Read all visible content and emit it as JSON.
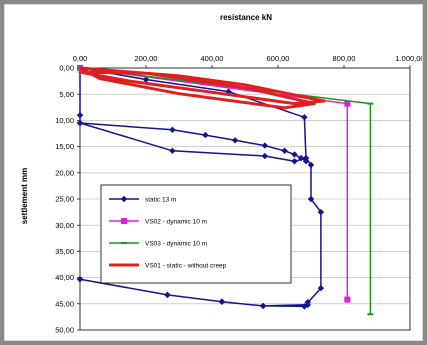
{
  "chart_data": {
    "type": "line",
    "title": "resistance kN",
    "xlabel": "",
    "ylabel": "settlement mm",
    "x_axis_position": "top",
    "y_axis_inverted": true,
    "xlim": [
      0,
      1000
    ],
    "ylim": [
      0,
      50
    ],
    "x_ticks": [
      "0,00",
      "200,00",
      "400,00",
      "600,00",
      "800,00",
      "1.000,00"
    ],
    "y_ticks": [
      "0,00",
      "5,00",
      "10,00",
      "15,00",
      "20,00",
      "25,00",
      "30,00",
      "35,00",
      "40,00",
      "45,00",
      "50,00"
    ],
    "grid": true,
    "legend_position": "lower-left inside",
    "series": [
      {
        "name": "static 13 m",
        "color": "#14148c",
        "marker": "diamond",
        "points": [
          [
            0,
            9.0
          ],
          [
            0,
            10.5
          ],
          [
            280,
            11.8
          ],
          [
            380,
            12.8
          ],
          [
            470,
            13.8
          ],
          [
            560,
            14.8
          ],
          [
            620,
            15.8
          ],
          [
            650,
            16.5
          ],
          [
            670,
            17.2
          ],
          [
            685,
            17.8
          ],
          [
            680,
            9.4
          ],
          [
            450,
            4.5
          ],
          [
            200,
            2.2
          ],
          [
            0,
            0
          ],
          [
            0,
            10.5
          ],
          [
            280,
            15.8
          ],
          [
            560,
            16.8
          ],
          [
            650,
            17.8
          ],
          [
            685,
            17.2
          ],
          [
            700,
            18.5
          ],
          [
            700,
            25.0
          ],
          [
            730,
            27.5
          ],
          [
            730,
            42.0
          ],
          [
            680,
            45.5
          ],
          [
            555,
            45.4
          ],
          [
            430,
            44.6
          ],
          [
            265,
            43.3
          ],
          [
            0,
            40.3
          ],
          [
            0,
            40.3
          ],
          [
            265,
            43.3
          ],
          [
            430,
            44.6
          ],
          [
            555,
            45.4
          ],
          [
            690,
            45.2
          ],
          [
            690,
            44.7
          ]
        ]
      },
      {
        "name": "VS02 - dynamic 10 m",
        "color": "#e020e0",
        "marker": "square",
        "points": [
          [
            0,
            0
          ],
          [
            810,
            6.8
          ],
          [
            810,
            44.2
          ]
        ]
      },
      {
        "name": "VS03 - dynamic 10 m",
        "color": "#1e961e",
        "marker": "dash",
        "points": [
          [
            0,
            0
          ],
          [
            880,
            6.8
          ],
          [
            880,
            47.0
          ]
        ]
      },
      {
        "name": "VS01 - static - without creep",
        "color": "#e02020",
        "marker": "none",
        "points": [
          [
            0,
            0
          ],
          [
            300,
            1.5
          ],
          [
            500,
            3.2
          ],
          [
            700,
            5.8
          ],
          [
            740,
            6.3
          ],
          [
            650,
            6.8
          ],
          [
            420,
            4.8
          ],
          [
            150,
            2.5
          ],
          [
            0,
            0.8
          ],
          [
            200,
            1.0
          ],
          [
            520,
            4.0
          ],
          [
            710,
            6.8
          ],
          [
            620,
            7.6
          ],
          [
            300,
            4.9
          ],
          [
            60,
            2.0
          ],
          [
            0,
            0
          ]
        ]
      }
    ]
  }
}
